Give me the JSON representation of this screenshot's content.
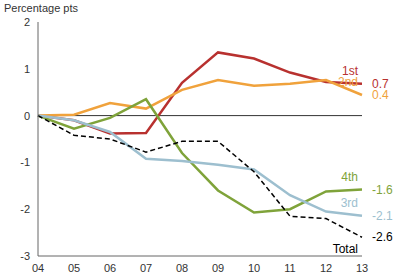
{
  "chart_data": {
    "type": "line",
    "y_label": "Percentage pts",
    "categories": [
      "04",
      "05",
      "06",
      "07",
      "08",
      "09",
      "10",
      "11",
      "12",
      "13"
    ],
    "ylim": [
      -3,
      2
    ],
    "yticks": [
      -3,
      -2,
      -1,
      0,
      1,
      2
    ],
    "reference_lines": [
      0
    ],
    "series": [
      {
        "name": "1st",
        "color": "#b8312f",
        "line_style": "solid",
        "values": [
          0,
          -0.1,
          -0.38,
          -0.37,
          0.7,
          1.35,
          1.22,
          0.92,
          0.72,
          0.68
        ],
        "value_labels": [
          null,
          null,
          null,
          null,
          null,
          null,
          null,
          null,
          null,
          "0.7"
        ]
      },
      {
        "name": "2nd",
        "color": "#f0a23c",
        "line_style": "solid",
        "values": [
          0,
          0.02,
          0.27,
          0.15,
          0.55,
          0.76,
          0.64,
          0.68,
          0.76,
          0.44
        ],
        "value_labels": [
          null,
          null,
          null,
          null,
          null,
          null,
          null,
          null,
          null,
          "0.4"
        ]
      },
      {
        "name": "4th",
        "color": "#7fa33a",
        "line_style": "solid",
        "values": [
          0,
          -0.28,
          -0.05,
          0.35,
          -0.8,
          -1.6,
          -2.07,
          -2.0,
          -1.62,
          -1.58
        ],
        "value_labels": [
          null,
          null,
          null,
          null,
          null,
          null,
          null,
          null,
          null,
          "-1.6"
        ]
      },
      {
        "name": "3rd",
        "color": "#9dbfcf",
        "line_style": "solid",
        "values": [
          0,
          -0.1,
          -0.35,
          -0.92,
          -0.97,
          -1.05,
          -1.15,
          -1.7,
          -2.05,
          -2.14
        ],
        "value_labels": [
          null,
          null,
          null,
          null,
          null,
          null,
          null,
          null,
          null,
          "-2.1"
        ]
      },
      {
        "name": "Total",
        "color": "#000000",
        "line_style": "dashed",
        "values": [
          0,
          -0.42,
          -0.5,
          -0.78,
          -0.55,
          -0.55,
          -1.2,
          -2.15,
          -2.2,
          -2.6
        ],
        "value_labels": [
          null,
          null,
          null,
          null,
          null,
          null,
          null,
          null,
          null,
          "-2.6"
        ]
      }
    ]
  }
}
